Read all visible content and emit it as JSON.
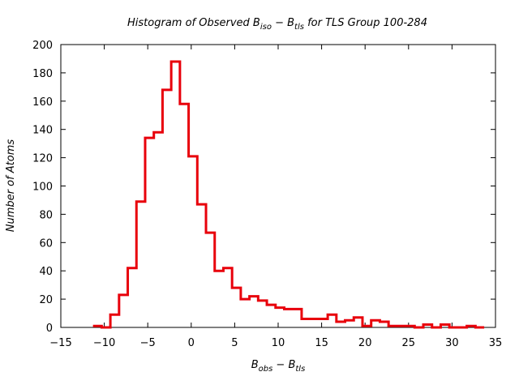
{
  "chart_data": {
    "type": "histogram",
    "title": {
      "prefix": "Histogram of Observed B",
      "sub1": "iso",
      "mid": " − B",
      "sub2": "tls",
      "suffix": " for TLS Group 100-284"
    },
    "xlabel": {
      "prefix": "B",
      "sub1": "obs",
      "mid": " − B",
      "sub2": "tls"
    },
    "ylabel": "Number of Atoms",
    "xlim": [
      -15,
      35
    ],
    "ylim": [
      0,
      200
    ],
    "xticks": [
      -15,
      -10,
      -5,
      0,
      5,
      10,
      15,
      20,
      25,
      30,
      35
    ],
    "yticks": [
      0,
      20,
      40,
      60,
      80,
      100,
      120,
      140,
      160,
      180,
      200
    ],
    "color": "#e8000b",
    "bin_edges": [
      -11.3,
      -10.3,
      -9.3,
      -8.3,
      -7.3,
      -6.3,
      -5.3,
      -4.3,
      -3.3,
      -2.3,
      -1.3,
      -0.3,
      0.7,
      1.7,
      2.7,
      3.7,
      4.7,
      5.7,
      6.7,
      7.7,
      8.7,
      9.7,
      10.7,
      11.7,
      12.7,
      13.7,
      14.7,
      15.7,
      16.7,
      17.7,
      18.7,
      19.7,
      20.7,
      21.7,
      22.7,
      23.7,
      24.7,
      25.7,
      26.7,
      27.7,
      28.7,
      29.7,
      30.7,
      31.7,
      32.7,
      33.7
    ],
    "counts": [
      1,
      0,
      9,
      23,
      42,
      89,
      134,
      138,
      168,
      188,
      158,
      121,
      87,
      67,
      40,
      42,
      28,
      20,
      22,
      19,
      16,
      14,
      13,
      13,
      6,
      6,
      6,
      9,
      4,
      5,
      7,
      1,
      5,
      4,
      1,
      1,
      1,
      0,
      2,
      0,
      2,
      0,
      0,
      1,
      0
    ]
  }
}
